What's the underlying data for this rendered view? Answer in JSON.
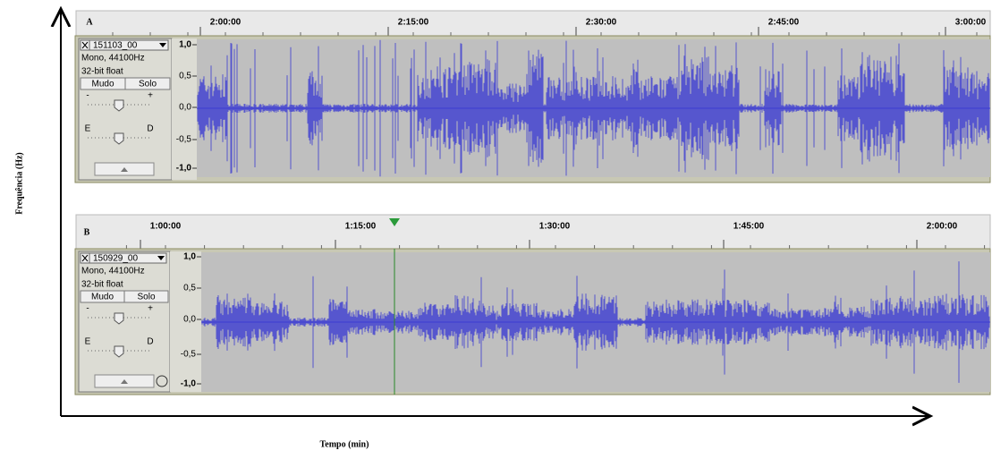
{
  "axes": {
    "y_label": "Frequência (Hz)",
    "x_label": "Tempo (min)"
  },
  "panels": [
    {
      "label": "A",
      "timeline": [
        "2:00:00",
        "2:15:00",
        "2:30:00",
        "2:45:00",
        "3:00:00"
      ],
      "track": {
        "name": "151103_00",
        "info": [
          "Mono, 44100Hz",
          "32-bit float"
        ],
        "buttons": [
          "Mudo",
          "Solo"
        ],
        "gain": [
          "-",
          "+"
        ],
        "pan": [
          "E",
          "D"
        ]
      },
      "scale": [
        "1,0",
        "0,5",
        "0,0",
        "-0,5",
        "-1,0"
      ]
    },
    {
      "label": "B",
      "timeline": [
        "1:00:00",
        "1:15:00",
        "1:30:00",
        "1:45:00",
        "2:00:00"
      ],
      "track": {
        "name": "150929_00",
        "info": [
          "Mono, 44100Hz",
          "32-bit float"
        ],
        "buttons": [
          "Mudo",
          "Solo"
        ],
        "gain": [
          "-",
          "+"
        ],
        "pan": [
          "E",
          "D"
        ]
      },
      "scale": [
        "1,0",
        "0,5",
        "0,0",
        "-0,5",
        "-1,0"
      ]
    }
  ]
}
